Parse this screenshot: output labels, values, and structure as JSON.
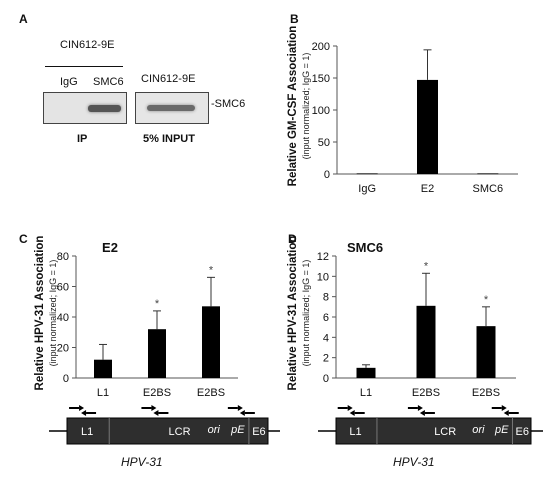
{
  "panels": {
    "A": {
      "letter": "A",
      "cell_line_left": "CIN612-9E",
      "cell_line_right": "CIN612-9E",
      "lane_igg": "IgG",
      "lane_smc6": "SMC6",
      "band_label": "-SMC6",
      "ip_label": "IP",
      "input_label": "5% INPUT"
    },
    "B": {
      "letter": "B",
      "significance": "**"
    },
    "C": {
      "letter": "C",
      "significance": [
        "",
        "*",
        "*"
      ]
    },
    "D": {
      "letter": "D",
      "significance": [
        "",
        "*",
        "*"
      ]
    }
  },
  "map": {
    "segments": [
      "L1",
      "LCR",
      "ori",
      "pE",
      "E6"
    ],
    "caption": "HPV-31"
  },
  "chart_data": [
    {
      "panel": "B",
      "type": "bar",
      "title": "",
      "ylabel": "Relative GM-CSF Association",
      "ylabel_sub": "(input normalized; IgG = 1)",
      "xlabel": "",
      "categories": [
        "IgG",
        "E2",
        "SMC6"
      ],
      "values": [
        1,
        147,
        1
      ],
      "errors": [
        0,
        47,
        0
      ],
      "ylim": [
        0,
        200
      ],
      "yticks": [
        0,
        50,
        100,
        150,
        200
      ],
      "grid": false
    },
    {
      "panel": "C",
      "type": "bar",
      "title": "E2",
      "ylabel": "Relative HPV-31 Association",
      "ylabel_sub": "(input normalized; IgG = 1)",
      "xlabel": "",
      "categories": [
        "L1",
        "E2BS",
        "E2BS"
      ],
      "values": [
        12,
        32,
        47
      ],
      "errors": [
        10,
        12,
        19
      ],
      "ylim": [
        0,
        80
      ],
      "yticks": [
        0,
        20,
        40,
        60,
        80
      ],
      "grid": false
    },
    {
      "panel": "D",
      "type": "bar",
      "title": "SMC6",
      "ylabel": "Relative HPV-31 Association",
      "ylabel_sub": "(input normalized; IgG = 1)",
      "xlabel": "",
      "categories": [
        "L1",
        "E2BS",
        "E2BS"
      ],
      "values": [
        1,
        7.1,
        5.1
      ],
      "errors": [
        0.3,
        3.2,
        1.9
      ],
      "ylim": [
        0,
        12
      ],
      "yticks": [
        0,
        2,
        4,
        6,
        8,
        10,
        12
      ],
      "grid": false
    }
  ]
}
